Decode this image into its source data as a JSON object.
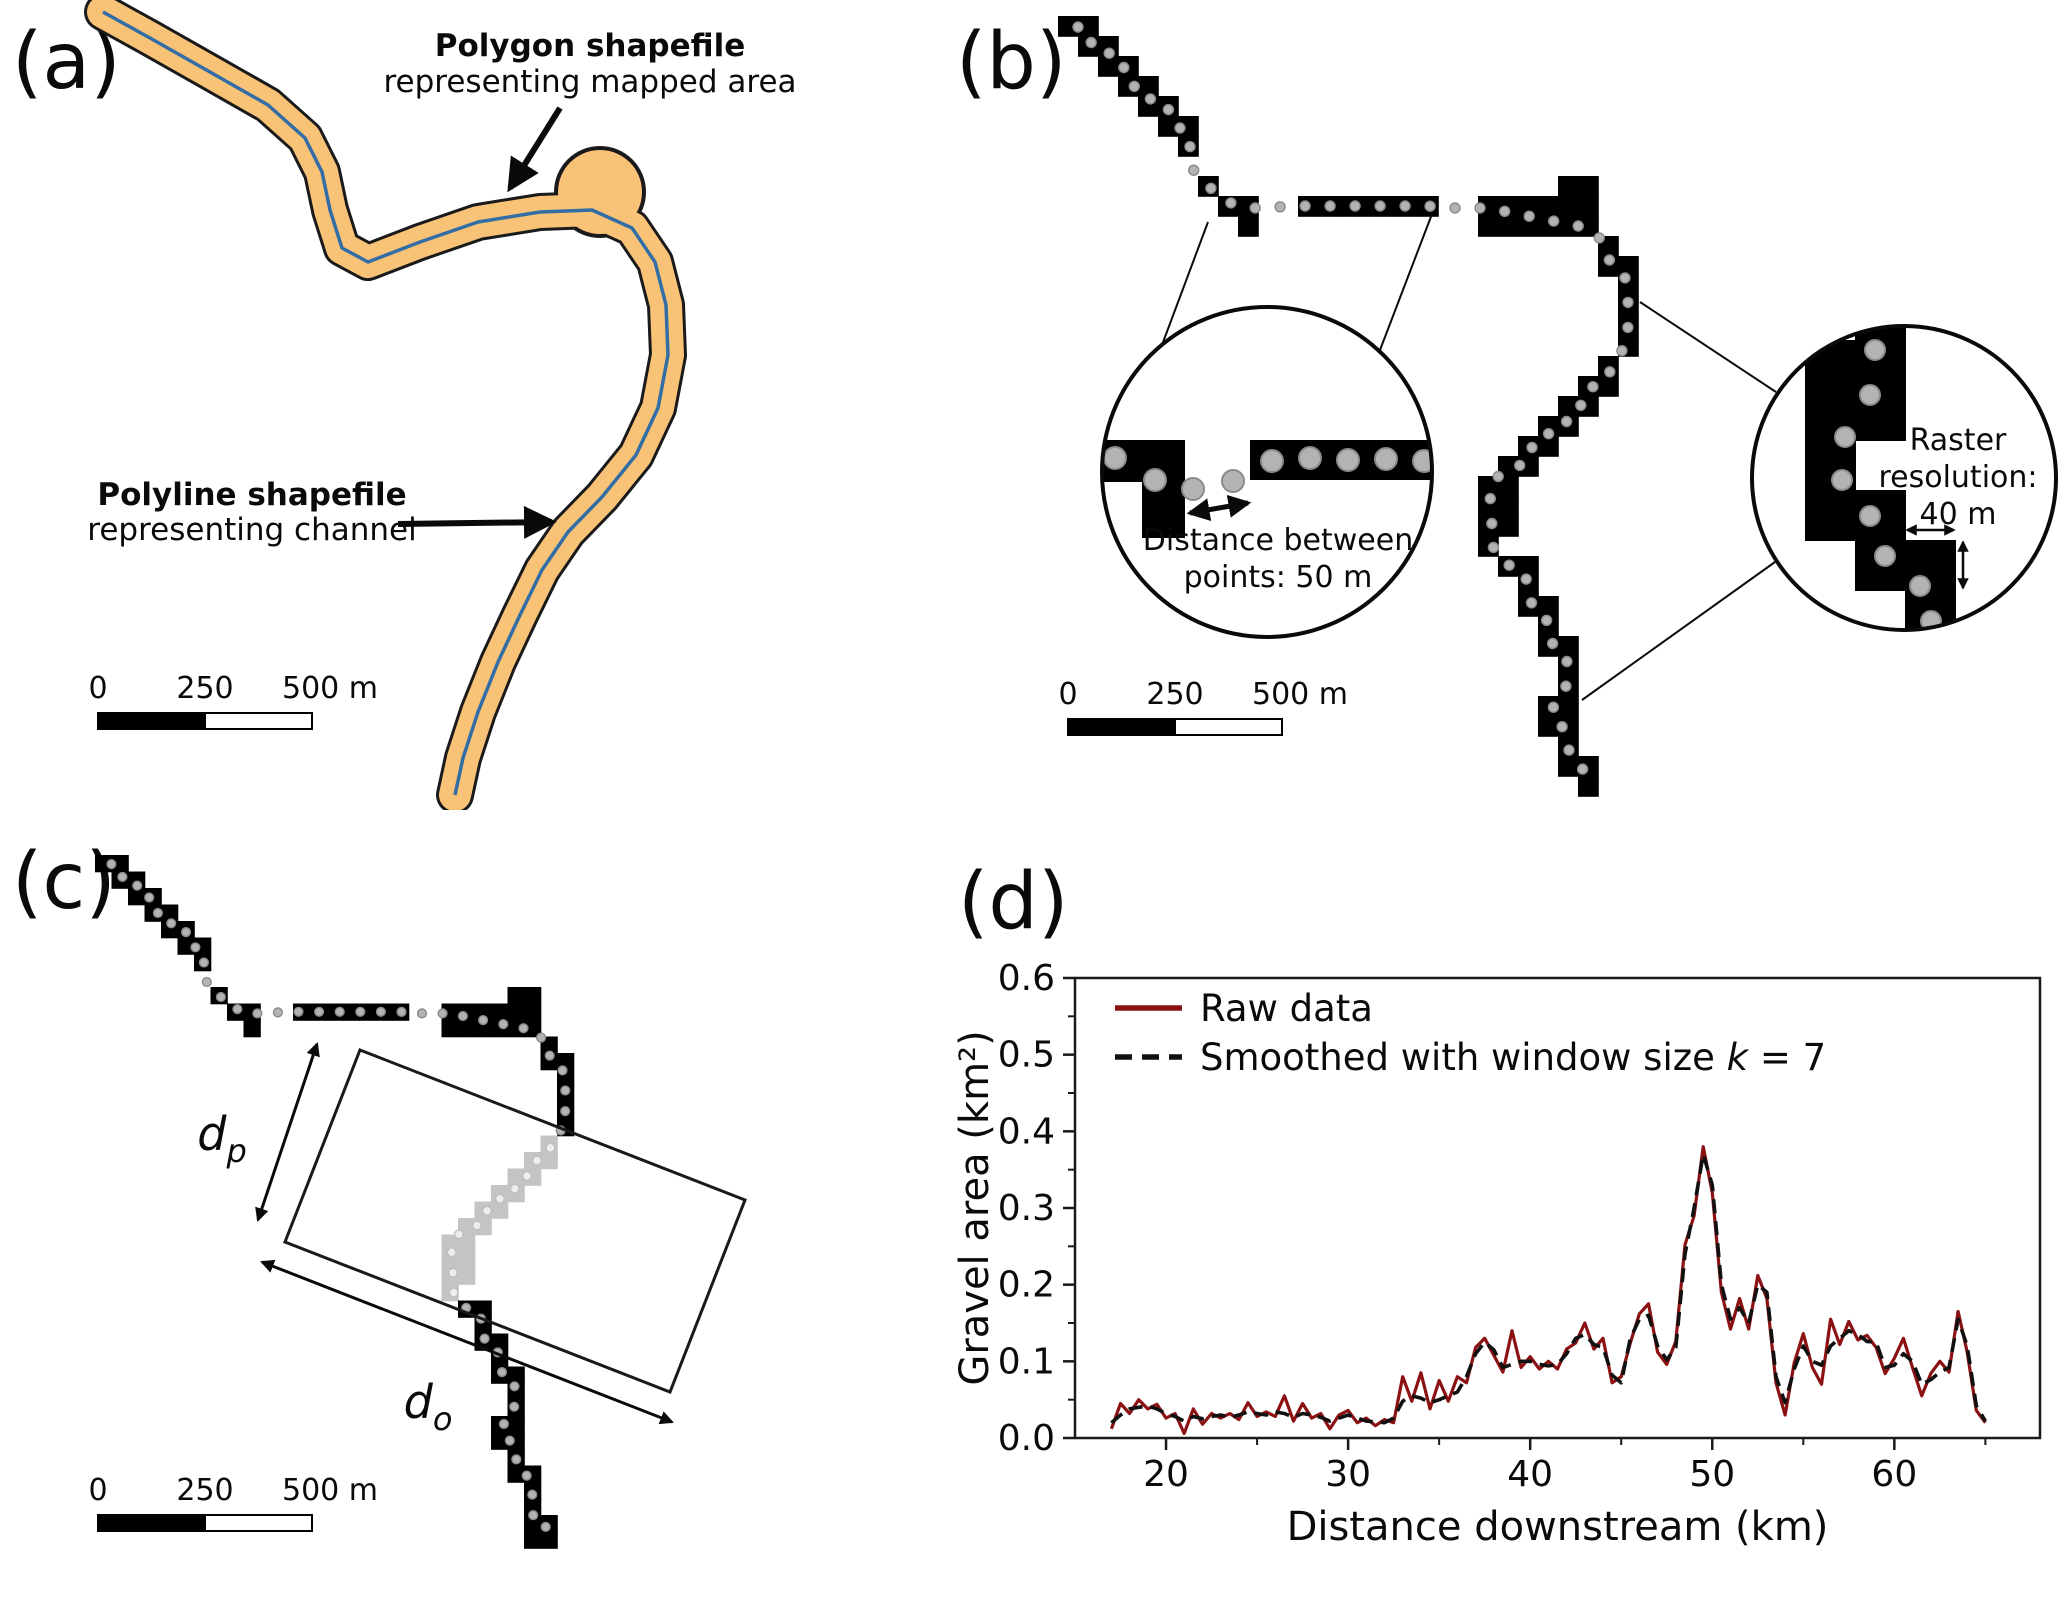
{
  "panels": {
    "a": "(a)",
    "b": "(b)",
    "c": "(c)",
    "d": "(d)"
  },
  "panel_a": {
    "polygon_annotation": {
      "line1": "Polygon shapefile",
      "line2": "representing mapped area"
    },
    "polyline_annotation": {
      "line1": "Polyline shapefile",
      "line2": "representing channel"
    },
    "colors": {
      "polygon_fill": "#f9c377",
      "polygon_outline": "#1a1a1a",
      "polyline": "#336da6"
    }
  },
  "panel_b": {
    "left_callout": {
      "line1": "Distance between",
      "line2": "points: 50 m"
    },
    "right_callout": {
      "line1": "Raster",
      "line2": "resolution:",
      "line3": "40 m"
    },
    "colors": {
      "raster": "#000000",
      "points": "#b3b3b3",
      "points_outline": "#8a8a8a"
    }
  },
  "panel_c": {
    "dp": {
      "symbol": "d",
      "subscript": "p"
    },
    "do": {
      "symbol": "d",
      "subscript": "o"
    },
    "colors": {
      "highlight_cells": "#c4c4c4",
      "highlight_points": "#ededed"
    }
  },
  "scalebar": {
    "t0": "0",
    "t250": "250",
    "t500": "500 m"
  },
  "chart_data": {
    "type": "line",
    "title": "",
    "xlabel": "Distance downstream (km)",
    "ylabel": "Gravel area (km²)",
    "xlim": [
      15,
      68
    ],
    "ylim": [
      0,
      0.6
    ],
    "xticks": [
      20,
      30,
      40,
      50,
      60
    ],
    "xticks_minor": [
      25,
      35,
      45,
      55,
      65
    ],
    "yticks": [
      0.0,
      0.1,
      0.2,
      0.3,
      0.4,
      0.5,
      0.6
    ],
    "yticks_minor": [
      0.05,
      0.15,
      0.25,
      0.35,
      0.45,
      0.55
    ],
    "grid": false,
    "legend_position": "upper left",
    "x_start": 17,
    "x_step": 0.5,
    "series": [
      {
        "name": "Raw data",
        "color": "#8b1113",
        "style": "solid",
        "values": [
          0.012,
          0.045,
          0.032,
          0.05,
          0.038,
          0.044,
          0.026,
          0.032,
          0.006,
          0.038,
          0.018,
          0.032,
          0.026,
          0.032,
          0.024,
          0.046,
          0.028,
          0.034,
          0.028,
          0.055,
          0.022,
          0.045,
          0.026,
          0.032,
          0.012,
          0.03,
          0.036,
          0.02,
          0.026,
          0.016,
          0.024,
          0.02,
          0.08,
          0.048,
          0.085,
          0.038,
          0.075,
          0.048,
          0.08,
          0.072,
          0.118,
          0.13,
          0.108,
          0.086,
          0.14,
          0.092,
          0.106,
          0.09,
          0.1,
          0.09,
          0.116,
          0.124,
          0.15,
          0.116,
          0.13,
          0.072,
          0.08,
          0.124,
          0.162,
          0.175,
          0.112,
          0.096,
          0.126,
          0.252,
          0.29,
          0.38,
          0.32,
          0.19,
          0.142,
          0.182,
          0.142,
          0.212,
          0.182,
          0.072,
          0.03,
          0.098,
          0.136,
          0.092,
          0.07,
          0.155,
          0.122,
          0.152,
          0.128,
          0.134,
          0.118,
          0.084,
          0.104,
          0.13,
          0.092,
          0.055,
          0.084,
          0.1,
          0.086,
          0.165,
          0.112,
          0.036,
          0.02
        ]
      },
      {
        "name": "Smoothed with window size k = 7",
        "color": "#111111",
        "style": "dashed",
        "values": [
          0.02,
          0.03,
          0.038,
          0.04,
          0.042,
          0.038,
          0.032,
          0.028,
          0.022,
          0.028,
          0.025,
          0.028,
          0.03,
          0.027,
          0.03,
          0.034,
          0.032,
          0.03,
          0.034,
          0.032,
          0.027,
          0.032,
          0.03,
          0.027,
          0.022,
          0.026,
          0.03,
          0.026,
          0.022,
          0.021,
          0.02,
          0.026,
          0.048,
          0.055,
          0.052,
          0.046,
          0.05,
          0.055,
          0.06,
          0.08,
          0.11,
          0.125,
          0.115,
          0.092,
          0.096,
          0.1,
          0.1,
          0.096,
          0.094,
          0.096,
          0.11,
          0.13,
          0.135,
          0.122,
          0.118,
          0.082,
          0.072,
          0.13,
          0.155,
          0.16,
          0.12,
          0.102,
          0.118,
          0.24,
          0.3,
          0.37,
          0.33,
          0.2,
          0.155,
          0.17,
          0.15,
          0.2,
          0.19,
          0.08,
          0.046,
          0.09,
          0.12,
          0.1,
          0.095,
          0.12,
          0.13,
          0.14,
          0.135,
          0.126,
          0.125,
          0.092,
          0.095,
          0.11,
          0.1,
          0.07,
          0.076,
          0.086,
          0.092,
          0.155,
          0.12,
          0.042,
          0.022
        ]
      }
    ]
  }
}
